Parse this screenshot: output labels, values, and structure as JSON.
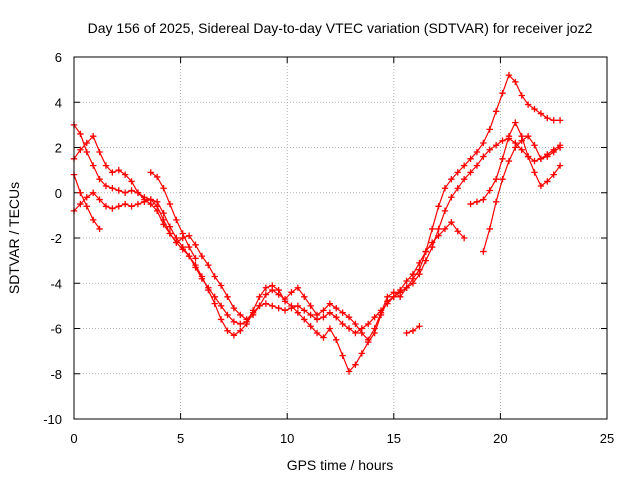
{
  "chart_data": {
    "type": "scatter",
    "title": "Day 156 of 2025, Sidereal Day-to-day VTEC variation (SDTVAR) for receiver joz2",
    "xlabel": "GPS time / hours",
    "ylabel": "SDTVAR / TECUs",
    "xlim": [
      0,
      25
    ],
    "ylim": [
      -10,
      6
    ],
    "x_ticks": [
      0,
      5,
      10,
      15,
      20,
      25
    ],
    "y_ticks": [
      -10,
      -8,
      -6,
      -4,
      -2,
      0,
      2,
      4,
      6
    ],
    "x_tick_labels": [
      "0",
      "5",
      "10",
      "15",
      "20",
      "25"
    ],
    "y_tick_labels": [
      "-10",
      "-8",
      "-6",
      "-4",
      "-2",
      "0",
      "2",
      "4",
      "6"
    ],
    "grid": true,
    "marker": "plus",
    "color": "#ff0000",
    "series": [
      {
        "x": [
          0.0,
          0.3,
          0.6,
          0.9,
          1.2,
          1.5,
          1.8,
          2.1,
          2.4,
          2.7,
          3.0,
          3.3,
          3.6,
          3.9,
          4.2,
          4.5,
          4.8,
          5.1,
          5.4,
          5.7,
          6.0,
          6.3,
          6.6,
          6.9,
          7.2,
          7.5,
          7.8,
          8.1,
          8.4,
          8.7,
          9.0,
          9.3,
          9.6,
          9.9,
          10.2,
          10.5,
          10.8,
          11.1,
          11.4,
          11.7,
          12.0,
          12.3,
          12.6,
          12.9,
          13.2,
          13.5,
          13.8,
          14.1,
          14.4,
          14.7,
          15.0,
          15.3,
          15.6,
          15.9,
          16.2,
          16.5,
          16.8,
          17.1,
          17.4,
          17.7,
          18.0,
          18.3,
          18.6,
          18.9,
          19.2,
          19.5,
          19.8,
          20.1,
          20.4,
          20.7,
          21.0,
          21.3,
          21.6,
          21.9,
          22.2,
          22.5,
          22.8
        ],
        "y": [
          3.0,
          2.6,
          1.8,
          1.2,
          0.6,
          0.3,
          0.2,
          0.1,
          0.0,
          0.1,
          0.0,
          -0.2,
          -0.3,
          -0.4,
          -0.9,
          -1.5,
          -2.0,
          -2.4,
          -2.8,
          -3.3,
          -3.8,
          -4.2,
          -4.6,
          -5.0,
          -5.4,
          -5.7,
          -5.8,
          -5.7,
          -5.4,
          -5.0,
          -4.9,
          -5.0,
          -5.1,
          -5.2,
          -5.1,
          -5.0,
          -5.2,
          -5.4,
          -5.6,
          -5.5,
          -5.3,
          -5.5,
          -5.8,
          -6.0,
          -6.2,
          -6.0,
          -5.8,
          -5.5,
          -5.2,
          -4.9,
          -4.6,
          -4.4,
          -4.2,
          -4.0,
          -3.6,
          -3.0,
          -2.4,
          -1.6,
          -0.8,
          -0.2,
          0.2,
          0.6,
          0.9,
          1.2,
          1.6,
          1.9,
          2.1,
          2.3,
          2.4,
          2.2,
          1.9,
          1.6,
          1.4,
          1.5,
          1.7,
          1.9,
          2.1
        ]
      },
      {
        "x": [
          0.0,
          0.3,
          0.6,
          0.9,
          1.2,
          1.5,
          1.8,
          2.1,
          2.4,
          2.7,
          3.0,
          3.3,
          3.6,
          3.9,
          4.2,
          4.5,
          4.8,
          5.1,
          5.4,
          5.7,
          6.0,
          6.3,
          6.6,
          6.9,
          7.2,
          7.5,
          7.8,
          8.1,
          8.4,
          8.7,
          9.0,
          9.3,
          9.6,
          9.9,
          10.2,
          10.5,
          10.8,
          11.1,
          11.4,
          11.7,
          12.0,
          12.3,
          12.6,
          12.9,
          13.2,
          13.5,
          13.8,
          14.1,
          14.4,
          14.7,
          15.0,
          15.3,
          15.6,
          15.9,
          16.2,
          16.5,
          16.8,
          17.1,
          17.4,
          17.7,
          18.0,
          18.3
        ],
        "y": [
          1.5,
          1.9,
          2.2,
          2.5,
          1.8,
          1.2,
          0.9,
          1.0,
          0.8,
          0.5,
          0.0,
          -0.3,
          -0.5,
          -0.8,
          -1.4,
          -1.8,
          -2.2,
          -2.5,
          -2.8,
          -3.2,
          -3.7,
          -4.3,
          -4.9,
          -5.6,
          -6.1,
          -6.3,
          -6.1,
          -5.8,
          -5.2,
          -4.6,
          -4.2,
          -4.1,
          -4.3,
          -4.8,
          -5.0,
          -5.3,
          -5.6,
          -5.9,
          -6.2,
          -6.4,
          -6.0,
          -6.5,
          -7.2,
          -7.9,
          -7.6,
          -7.1,
          -6.6,
          -6.2,
          -5.4,
          -4.8,
          -4.6,
          -4.3,
          -3.9,
          -3.6,
          -3.1,
          -2.6,
          -2.2,
          -1.9,
          -1.6,
          -1.3,
          -1.7,
          -2.0
        ]
      },
      {
        "x": [
          0.0,
          0.3,
          0.6,
          0.9,
          1.2,
          1.5,
          1.8,
          2.1,
          2.4,
          2.7,
          3.0,
          3.3,
          3.6,
          3.9,
          4.2,
          4.5,
          4.8,
          5.1,
          5.4,
          5.7,
          6.0,
          6.3,
          6.6,
          6.9,
          7.2,
          7.5,
          7.8,
          8.1,
          8.4,
          8.7,
          9.0,
          9.3,
          9.6,
          9.9,
          10.2,
          10.5,
          10.8,
          11.1,
          11.4,
          11.7,
          12.0,
          12.3,
          12.6,
          12.9,
          13.2,
          13.5,
          13.8,
          14.1,
          14.4,
          14.7,
          15.0,
          15.3,
          15.6,
          15.9,
          16.2,
          16.5,
          16.8,
          17.1,
          17.4,
          17.7,
          18.0,
          18.3,
          18.6,
          18.9,
          19.2,
          19.5,
          19.8,
          20.1,
          20.4,
          20.7,
          21.0,
          21.3,
          21.6,
          21.9,
          22.2,
          22.5,
          22.8
        ],
        "y": [
          -0.8,
          -0.5,
          -0.2,
          0.0,
          -0.3,
          -0.6,
          -0.7,
          -0.6,
          -0.5,
          -0.6,
          -0.5,
          -0.4,
          -0.3,
          -0.6,
          -1.2,
          -1.8,
          -2.2,
          -2.0,
          -1.9,
          -2.3,
          -2.8,
          -3.2,
          -3.7,
          -4.1,
          -4.6,
          -5.1,
          -5.4,
          -5.6,
          -5.3,
          -5.0,
          -4.5,
          -4.3,
          -4.5,
          -4.7,
          -4.4,
          -4.2,
          -4.6,
          -5.0,
          -5.4,
          -5.2,
          -4.9,
          -5.1,
          -5.3,
          -5.5,
          -5.8,
          -6.2,
          -6.5,
          -6.0,
          -5.3,
          -4.6,
          -4.4,
          -4.6,
          -4.2,
          -3.8,
          -3.4,
          -2.6,
          -1.6,
          -0.6,
          0.2,
          0.6,
          0.9,
          1.2,
          1.5,
          1.8,
          2.2,
          2.8,
          3.6,
          4.4,
          5.2,
          4.9,
          4.3,
          3.9,
          3.7,
          3.5,
          3.3,
          3.2,
          3.2
        ]
      },
      {
        "x": [
          0.0,
          0.3,
          0.6,
          0.9,
          1.2
        ],
        "y": [
          0.8,
          0.0,
          -0.6,
          -1.2,
          -1.6
        ]
      },
      {
        "x": [
          3.6,
          3.9,
          4.2,
          4.5,
          4.8,
          5.1,
          5.4,
          5.7
        ],
        "y": [
          0.9,
          0.7,
          0.2,
          -0.5,
          -1.2,
          -1.8,
          -2.4,
          -2.9
        ]
      },
      {
        "x": [
          15.6,
          15.9,
          16.2
        ],
        "y": [
          -6.2,
          -6.1,
          -5.9
        ]
      },
      {
        "x": [
          18.6,
          18.9,
          19.2,
          19.5,
          19.8,
          20.1,
          20.4,
          20.7,
          21.0,
          21.3,
          21.6,
          21.9,
          22.2,
          22.5,
          22.8
        ],
        "y": [
          -0.5,
          -0.4,
          -0.3,
          0.1,
          0.6,
          1.5,
          2.5,
          3.1,
          2.5,
          1.6,
          0.9,
          0.3,
          0.5,
          0.8,
          1.2
        ]
      },
      {
        "x": [
          19.2,
          19.5,
          19.8,
          20.1,
          20.4,
          20.7,
          21.0,
          21.3,
          21.6,
          21.9,
          22.2,
          22.5,
          22.8
        ],
        "y": [
          -2.6,
          -1.6,
          -0.4,
          0.6,
          1.4,
          2.0,
          2.3,
          2.5,
          2.1,
          1.5,
          1.6,
          1.8,
          2.0
        ]
      }
    ]
  }
}
